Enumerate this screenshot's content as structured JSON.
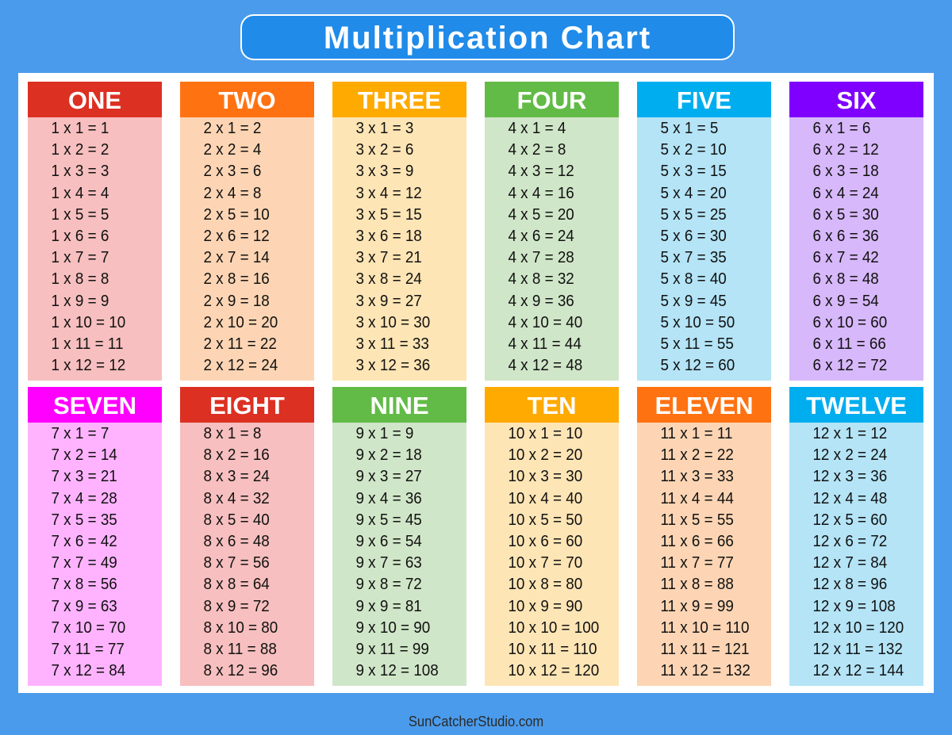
{
  "title": "Multiplication Chart",
  "footer": "SunCatcherStudio.com",
  "tables": [
    {
      "name": "ONE",
      "header_color": "#dc3022",
      "body_color": "#f7bfbf",
      "rows": [
        "1 x 1 = 1",
        "1 x 2 = 2",
        "1 x 3 = 3",
        "1 x 4 = 4",
        "1 x 5 = 5",
        "1 x 6 = 6",
        "1 x 7 = 7",
        "1 x 8 = 8",
        "1 x 9 = 9",
        "1 x 10 = 10",
        "1 x 11 = 11",
        "1 x 12 = 12"
      ]
    },
    {
      "name": "TWO",
      "header_color": "#ff7212",
      "body_color": "#fdd5b4",
      "rows": [
        "2 x 1 = 2",
        "2 x 2 = 4",
        "2 x 3 = 6",
        "2 x 4 = 8",
        "2 x 5 = 10",
        "2 x 6 = 12",
        "2 x 7 = 14",
        "2 x 8 = 16",
        "2 x 9 = 18",
        "2 x 10 = 20",
        "2 x 11 = 22",
        "2 x 12 = 24"
      ]
    },
    {
      "name": "THREE",
      "header_color": "#ffaa00",
      "body_color": "#fee5b5",
      "rows": [
        "3 x 1 = 3",
        "3 x 2 = 6",
        "3 x 3 = 9",
        "3 x 4 = 12",
        "3 x 5 = 15",
        "3 x 6 = 18",
        "3 x 7 = 21",
        "3 x 8 = 24",
        "3 x 9 = 27",
        "3 x 10 = 30",
        "3 x 11 = 33",
        "3 x 12 = 36"
      ]
    },
    {
      "name": "FOUR",
      "header_color": "#62bb46",
      "body_color": "#d0e6c8",
      "rows": [
        "4 x 1 = 4",
        "4 x 2 = 8",
        "4 x 3 = 12",
        "4 x 4 = 16",
        "4 x 5 = 20",
        "4 x 6 = 24",
        "4 x 7 = 28",
        "4 x 8 = 32",
        "4 x 9 = 36",
        "4 x 10 = 40",
        "4 x 11 = 44",
        "4 x 12 = 48"
      ]
    },
    {
      "name": "FIVE",
      "header_color": "#00aeef",
      "body_color": "#b4e4f6",
      "rows": [
        "5 x 1 = 5",
        "5 x 2 = 10",
        "5 x 3 = 15",
        "5 x 4 = 20",
        "5 x 5 = 25",
        "5 x 6 = 30",
        "5 x 7 = 35",
        "5 x 8 = 40",
        "5 x 9 = 45",
        "5 x 10 = 50",
        "5 x 11 = 55",
        "5 x 12 = 60"
      ]
    },
    {
      "name": "SIX",
      "header_color": "#7f00ff",
      "body_color": "#d7b8fa",
      "rows": [
        "6 x 1 = 6",
        "6 x 2 = 12",
        "6 x 3 = 18",
        "6 x 4 = 24",
        "6 x 5 = 30",
        "6 x 6 = 36",
        "6 x 7 = 42",
        "6 x 8 = 48",
        "6 x 9 = 54",
        "6 x 10 = 60",
        "6 x 11 = 66",
        "6 x 12 = 72"
      ]
    },
    {
      "name": "SEVEN",
      "header_color": "#ff00ff",
      "body_color": "#ffb3ff",
      "rows": [
        "7 x 1 = 7",
        "7 x 2 = 14",
        "7 x 3 = 21",
        "7 x 4 = 28",
        "7 x 5 = 35",
        "7 x 6 = 42",
        "7 x 7 = 49",
        "7 x 8 = 56",
        "7 x 9 = 63",
        "7 x 10 = 70",
        "7 x 11 = 77",
        "7 x 12 = 84"
      ]
    },
    {
      "name": "EIGHT",
      "header_color": "#dc3022",
      "body_color": "#f7bfbf",
      "rows": [
        "8 x 1 = 8",
        "8 x 2 = 16",
        "8 x 3 = 24",
        "8 x 4 = 32",
        "8 x 5 = 40",
        "8 x 6 = 48",
        "8 x 7 = 56",
        "8 x 8 = 64",
        "8 x 9 = 72",
        "8 x 10 = 80",
        "8 x 11 = 88",
        "8 x 12 = 96"
      ]
    },
    {
      "name": "NINE",
      "header_color": "#62bb46",
      "body_color": "#d0e6c8",
      "rows": [
        "9 x 1 = 9",
        "9 x 2 = 18",
        "9 x 3 = 27",
        "9 x 4 = 36",
        "9 x 5 = 45",
        "9 x 6 = 54",
        "9 x 7 = 63",
        "9 x 8 = 72",
        "9 x 9 = 81",
        "9 x 10 = 90",
        "9 x 11 = 99",
        "9 x 12 = 108"
      ]
    },
    {
      "name": "TEN",
      "header_color": "#ffaa00",
      "body_color": "#fee5b5",
      "rows": [
        "10 x 1 = 10",
        "10 x 2 = 20",
        "10 x 3 = 30",
        "10 x 4 = 40",
        "10 x 5 = 50",
        "10 x 6 = 60",
        "10 x 7 = 70",
        "10 x 8 = 80",
        "10 x 9 = 90",
        "10 x 10 = 100",
        "10 x 11 = 110",
        "10 x 12 = 120"
      ]
    },
    {
      "name": "ELEVEN",
      "header_color": "#ff7212",
      "body_color": "#fdd5b4",
      "rows": [
        "11 x 1 = 11",
        "11 x 2 = 22",
        "11 x 3 = 33",
        "11 x 4 = 44",
        "11 x 5 = 55",
        "11 x 6 = 66",
        "11 x 7 = 77",
        "11 x 8 = 88",
        "11 x 9 = 99",
        "11 x 10 = 110",
        "11 x 11 = 121",
        "11 x 12 = 132"
      ]
    },
    {
      "name": "TWELVE",
      "header_color": "#00aeef",
      "body_color": "#b4e4f6",
      "rows": [
        "12 x 1 = 12",
        "12 x 2 = 24",
        "12 x 3 = 36",
        "12 x 4 = 48",
        "12 x 5 = 60",
        "12 x 6 = 72",
        "12 x 7 = 84",
        "12 x 8 = 96",
        "12 x 9 = 108",
        "12 x 10 = 120",
        "12 x 11 = 132",
        "12 x 12 = 144"
      ]
    }
  ]
}
